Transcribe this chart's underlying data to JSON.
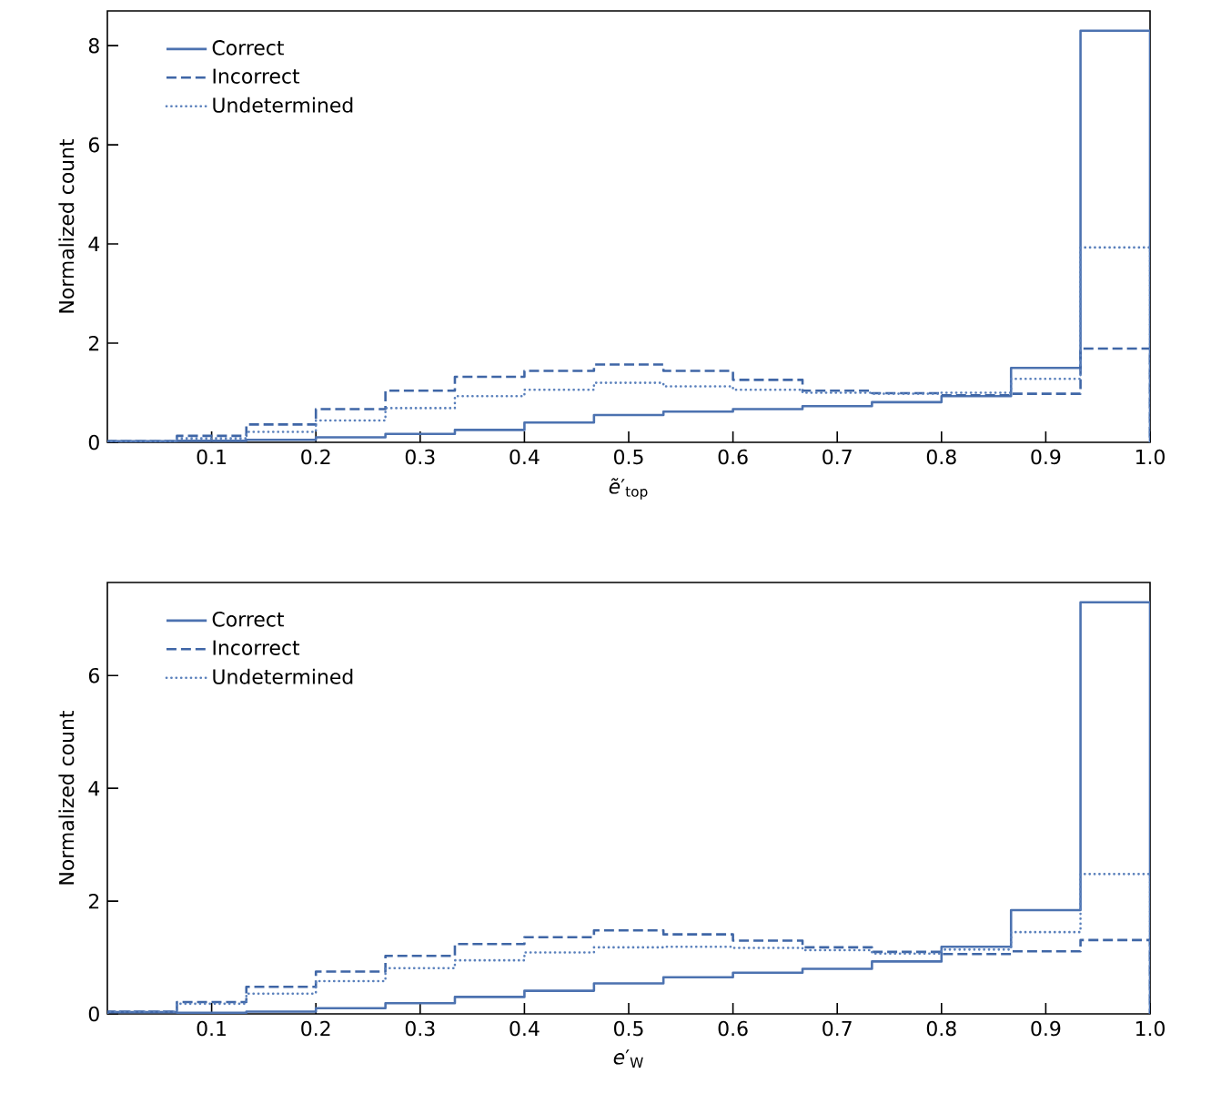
{
  "chart_data": [
    {
      "type": "histogram",
      "xlabel": "*ẽ*′$_{top}$",
      "ylabel": "Normalized count",
      "bins": [
        0,
        0.0667,
        0.1333,
        0.2,
        0.2667,
        0.3333,
        0.4,
        0.4667,
        0.5333,
        0.6,
        0.6667,
        0.7333,
        0.8,
        0.8667,
        0.9333,
        1.0
      ],
      "series": [
        {
          "name": "Correct",
          "color": "#4c72b0",
          "line_style": "solid",
          "values": [
            0.02,
            0.03,
            0.05,
            0.1,
            0.17,
            0.25,
            0.4,
            0.55,
            0.62,
            0.67,
            0.73,
            0.81,
            0.93,
            1.5,
            8.3
          ]
        },
        {
          "name": "Incorrect",
          "color": "#3f66a6",
          "line_style": "dashed",
          "values": [
            0.02,
            0.13,
            0.36,
            0.67,
            1.04,
            1.32,
            1.44,
            1.57,
            1.44,
            1.26,
            1.04,
            0.99,
            0.95,
            0.98,
            1.89
          ]
        },
        {
          "name": "Undetermined",
          "color": "#5a80bc",
          "line_style": "dotted",
          "values": [
            0.02,
            0.08,
            0.21,
            0.44,
            0.69,
            0.93,
            1.06,
            1.2,
            1.13,
            1.06,
            1.0,
            0.98,
            1.0,
            1.28,
            3.93
          ]
        }
      ],
      "xlim": [
        0,
        1
      ],
      "ylim": [
        0,
        8.7
      ],
      "xticks": [
        0.1,
        0.2,
        0.3,
        0.4,
        0.5,
        0.6,
        0.7,
        0.8,
        0.9,
        {
          "value": 1.0,
          "label": "1.0"
        }
      ],
      "yticks": [
        0,
        2,
        4,
        6,
        8
      ],
      "grid": false,
      "legend": "top left"
    },
    {
      "type": "histogram",
      "xlabel": "*e*′$_{W}$",
      "ylabel": "Normalized count",
      "bins": [
        0,
        0.0667,
        0.1333,
        0.2,
        0.2667,
        0.3333,
        0.4,
        0.4667,
        0.5333,
        0.6,
        0.6667,
        0.7333,
        0.8,
        0.8667,
        0.9333,
        1.0
      ],
      "series": [
        {
          "name": "Correct",
          "color": "#4c72b0",
          "line_style": "solid",
          "values": [
            0.03,
            0.02,
            0.04,
            0.1,
            0.19,
            0.3,
            0.41,
            0.54,
            0.65,
            0.73,
            0.8,
            0.93,
            1.19,
            1.84,
            7.3
          ]
        },
        {
          "name": "Incorrect",
          "color": "#3f66a6",
          "line_style": "dashed",
          "values": [
            0.04,
            0.21,
            0.48,
            0.75,
            1.03,
            1.24,
            1.36,
            1.48,
            1.41,
            1.3,
            1.18,
            1.1,
            1.06,
            1.11,
            1.31
          ]
        },
        {
          "name": "Undetermined",
          "color": "#5a80bc",
          "line_style": "dotted",
          "values": [
            0.04,
            0.18,
            0.36,
            0.58,
            0.81,
            0.95,
            1.09,
            1.18,
            1.19,
            1.17,
            1.13,
            1.07,
            1.14,
            1.45,
            2.48
          ]
        }
      ],
      "xlim": [
        0,
        1
      ],
      "ylim": [
        0,
        7.65
      ],
      "xticks": [
        0.1,
        0.2,
        0.3,
        0.4,
        0.5,
        0.6,
        0.7,
        0.8,
        0.9,
        {
          "value": 1.0,
          "label": "1.0"
        }
      ],
      "yticks": [
        0,
        2,
        4,
        6
      ],
      "grid": false,
      "legend": "top left"
    }
  ]
}
